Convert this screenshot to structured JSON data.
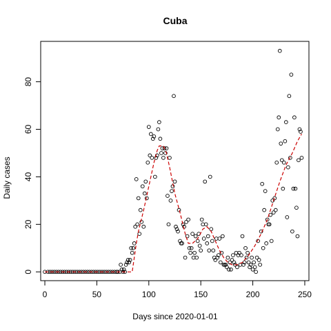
{
  "chart_data": {
    "type": "scatter",
    "title": "Cuba",
    "xlabel": "Days since 2020-01-01",
    "ylabel": "Daily cases",
    "xlim": [
      -4,
      254
    ],
    "ylim": [
      -3.7,
      97
    ],
    "xticks": [
      0,
      50,
      100,
      150,
      200,
      250
    ],
    "yticks": [
      0,
      20,
      40,
      60,
      80
    ],
    "grid": false,
    "point_style": "open-circle",
    "trend_color": "#cc0000",
    "points": [
      [
        0,
        0
      ],
      [
        3,
        0
      ],
      [
        5,
        0
      ],
      [
        7,
        0
      ],
      [
        9,
        0
      ],
      [
        11,
        0
      ],
      [
        13,
        0
      ],
      [
        15,
        0
      ],
      [
        17,
        0
      ],
      [
        19,
        0
      ],
      [
        21,
        0
      ],
      [
        23,
        0
      ],
      [
        25,
        0
      ],
      [
        27,
        0
      ],
      [
        29,
        0
      ],
      [
        31,
        0
      ],
      [
        33,
        0
      ],
      [
        35,
        0
      ],
      [
        37,
        0
      ],
      [
        39,
        0
      ],
      [
        41,
        0
      ],
      [
        43,
        0
      ],
      [
        45,
        0
      ],
      [
        47,
        0
      ],
      [
        49,
        0
      ],
      [
        51,
        0
      ],
      [
        53,
        0
      ],
      [
        55,
        0
      ],
      [
        57,
        0
      ],
      [
        59,
        0
      ],
      [
        61,
        0
      ],
      [
        63,
        0
      ],
      [
        65,
        0
      ],
      [
        67,
        0
      ],
      [
        69,
        0
      ],
      [
        70,
        0
      ],
      [
        72,
        0
      ],
      [
        73,
        3
      ],
      [
        74,
        1
      ],
      [
        75,
        0
      ],
      [
        76,
        1
      ],
      [
        77,
        0
      ],
      [
        78,
        3
      ],
      [
        79,
        4
      ],
      [
        80,
        5
      ],
      [
        81,
        4
      ],
      [
        82,
        5
      ],
      [
        83,
        10
      ],
      [
        84,
        8
      ],
      [
        85,
        10
      ],
      [
        86,
        12
      ],
      [
        87,
        19
      ],
      [
        88,
        39
      ],
      [
        89,
        20
      ],
      [
        90,
        31
      ],
      [
        91,
        16
      ],
      [
        92,
        26
      ],
      [
        93,
        21
      ],
      [
        94,
        36
      ],
      [
        95,
        19
      ],
      [
        96,
        33
      ],
      [
        97,
        38
      ],
      [
        98,
        31
      ],
      [
        99,
        46
      ],
      [
        100,
        61
      ],
      [
        101,
        49
      ],
      [
        102,
        58
      ],
      [
        103,
        48
      ],
      [
        104,
        56
      ],
      [
        105,
        57
      ],
      [
        106,
        40
      ],
      [
        107,
        48
      ],
      [
        108,
        49
      ],
      [
        109,
        60
      ],
      [
        110,
        63
      ],
      [
        111,
        56
      ],
      [
        112,
        50
      ],
      [
        113,
        52
      ],
      [
        114,
        48
      ],
      [
        115,
        52
      ],
      [
        116,
        50
      ],
      [
        117,
        52
      ],
      [
        118,
        32
      ],
      [
        119,
        20
      ],
      [
        120,
        48
      ],
      [
        121,
        30
      ],
      [
        122,
        34
      ],
      [
        123,
        36
      ],
      [
        124,
        74
      ],
      [
        125,
        38
      ],
      [
        126,
        19
      ],
      [
        127,
        18
      ],
      [
        128,
        17
      ],
      [
        129,
        26
      ],
      [
        130,
        13
      ],
      [
        131,
        12
      ],
      [
        132,
        12
      ],
      [
        133,
        20
      ],
      [
        134,
        19
      ],
      [
        135,
        6
      ],
      [
        136,
        21
      ],
      [
        137,
        15
      ],
      [
        138,
        22
      ],
      [
        139,
        10
      ],
      [
        140,
        8
      ],
      [
        141,
        10
      ],
      [
        142,
        16
      ],
      [
        143,
        6
      ],
      [
        144,
        8
      ],
      [
        145,
        15
      ],
      [
        146,
        6
      ],
      [
        147,
        13
      ],
      [
        148,
        16
      ],
      [
        149,
        11
      ],
      [
        150,
        9
      ],
      [
        151,
        22
      ],
      [
        152,
        20
      ],
      [
        153,
        14
      ],
      [
        154,
        38
      ],
      [
        155,
        20
      ],
      [
        156,
        12
      ],
      [
        157,
        15
      ],
      [
        158,
        9
      ],
      [
        159,
        40
      ],
      [
        160,
        18
      ],
      [
        161,
        13
      ],
      [
        162,
        9
      ],
      [
        163,
        6
      ],
      [
        164,
        5
      ],
      [
        165,
        14
      ],
      [
        166,
        6
      ],
      [
        167,
        7
      ],
      [
        168,
        14
      ],
      [
        169,
        4
      ],
      [
        170,
        8
      ],
      [
        171,
        15
      ],
      [
        172,
        3
      ],
      [
        173,
        3
      ],
      [
        174,
        3
      ],
      [
        175,
        2
      ],
      [
        176,
        6
      ],
      [
        177,
        1
      ],
      [
        178,
        4
      ],
      [
        179,
        1
      ],
      [
        180,
        5
      ],
      [
        181,
        7
      ],
      [
        182,
        4
      ],
      [
        183,
        3
      ],
      [
        184,
        8
      ],
      [
        185,
        2
      ],
      [
        186,
        7
      ],
      [
        187,
        8
      ],
      [
        188,
        3
      ],
      [
        189,
        7
      ],
      [
        190,
        15
      ],
      [
        191,
        3
      ],
      [
        192,
        4
      ],
      [
        193,
        10
      ],
      [
        194,
        6
      ],
      [
        195,
        8
      ],
      [
        196,
        4
      ],
      [
        197,
        2
      ],
      [
        198,
        3
      ],
      [
        199,
        6
      ],
      [
        200,
        1
      ],
      [
        201,
        4
      ],
      [
        202,
        2
      ],
      [
        203,
        0
      ],
      [
        204,
        6
      ],
      [
        205,
        13
      ],
      [
        206,
        5
      ],
      [
        207,
        3
      ],
      [
        208,
        17
      ],
      [
        209,
        37
      ],
      [
        210,
        10
      ],
      [
        211,
        26
      ],
      [
        212,
        34
      ],
      [
        213,
        12
      ],
      [
        214,
        22
      ],
      [
        215,
        20
      ],
      [
        216,
        20
      ],
      [
        217,
        24
      ],
      [
        218,
        13
      ],
      [
        219,
        30
      ],
      [
        220,
        25
      ],
      [
        221,
        31
      ],
      [
        222,
        26
      ],
      [
        223,
        46
      ],
      [
        224,
        60
      ],
      [
        225,
        65
      ],
      [
        226,
        93
      ],
      [
        227,
        54
      ],
      [
        228,
        47
      ],
      [
        229,
        35
      ],
      [
        230,
        46
      ],
      [
        231,
        55
      ],
      [
        232,
        63
      ],
      [
        233,
        23
      ],
      [
        234,
        44
      ],
      [
        235,
        74
      ],
      [
        236,
        48
      ],
      [
        237,
        83
      ],
      [
        238,
        17
      ],
      [
        239,
        35
      ],
      [
        240,
        65
      ],
      [
        241,
        35
      ],
      [
        242,
        27
      ],
      [
        243,
        15
      ],
      [
        244,
        47
      ],
      [
        245,
        60
      ],
      [
        246,
        59
      ],
      [
        247,
        48
      ]
    ],
    "trend": [
      [
        0,
        0
      ],
      [
        80,
        0
      ],
      [
        84,
        0
      ],
      [
        86,
        6
      ],
      [
        88,
        12
      ],
      [
        90,
        17
      ],
      [
        95,
        26
      ],
      [
        100,
        36
      ],
      [
        105,
        46
      ],
      [
        108,
        51
      ],
      [
        110,
        53
      ],
      [
        114,
        53
      ],
      [
        117,
        50
      ],
      [
        120,
        44
      ],
      [
        125,
        33
      ],
      [
        130,
        25
      ],
      [
        135,
        16
      ],
      [
        138,
        12
      ],
      [
        142,
        12
      ],
      [
        147,
        14
      ],
      [
        152,
        18
      ],
      [
        156,
        19
      ],
      [
        160,
        17
      ],
      [
        164,
        13
      ],
      [
        168,
        9
      ],
      [
        172,
        6
      ],
      [
        176,
        4
      ],
      [
        180,
        3
      ],
      [
        185,
        3
      ],
      [
        190,
        4
      ],
      [
        196,
        7
      ],
      [
        202,
        11
      ],
      [
        208,
        16
      ],
      [
        214,
        22
      ],
      [
        220,
        30
      ],
      [
        226,
        38
      ],
      [
        232,
        45
      ],
      [
        238,
        50
      ],
      [
        243,
        55
      ],
      [
        247,
        58
      ]
    ]
  }
}
